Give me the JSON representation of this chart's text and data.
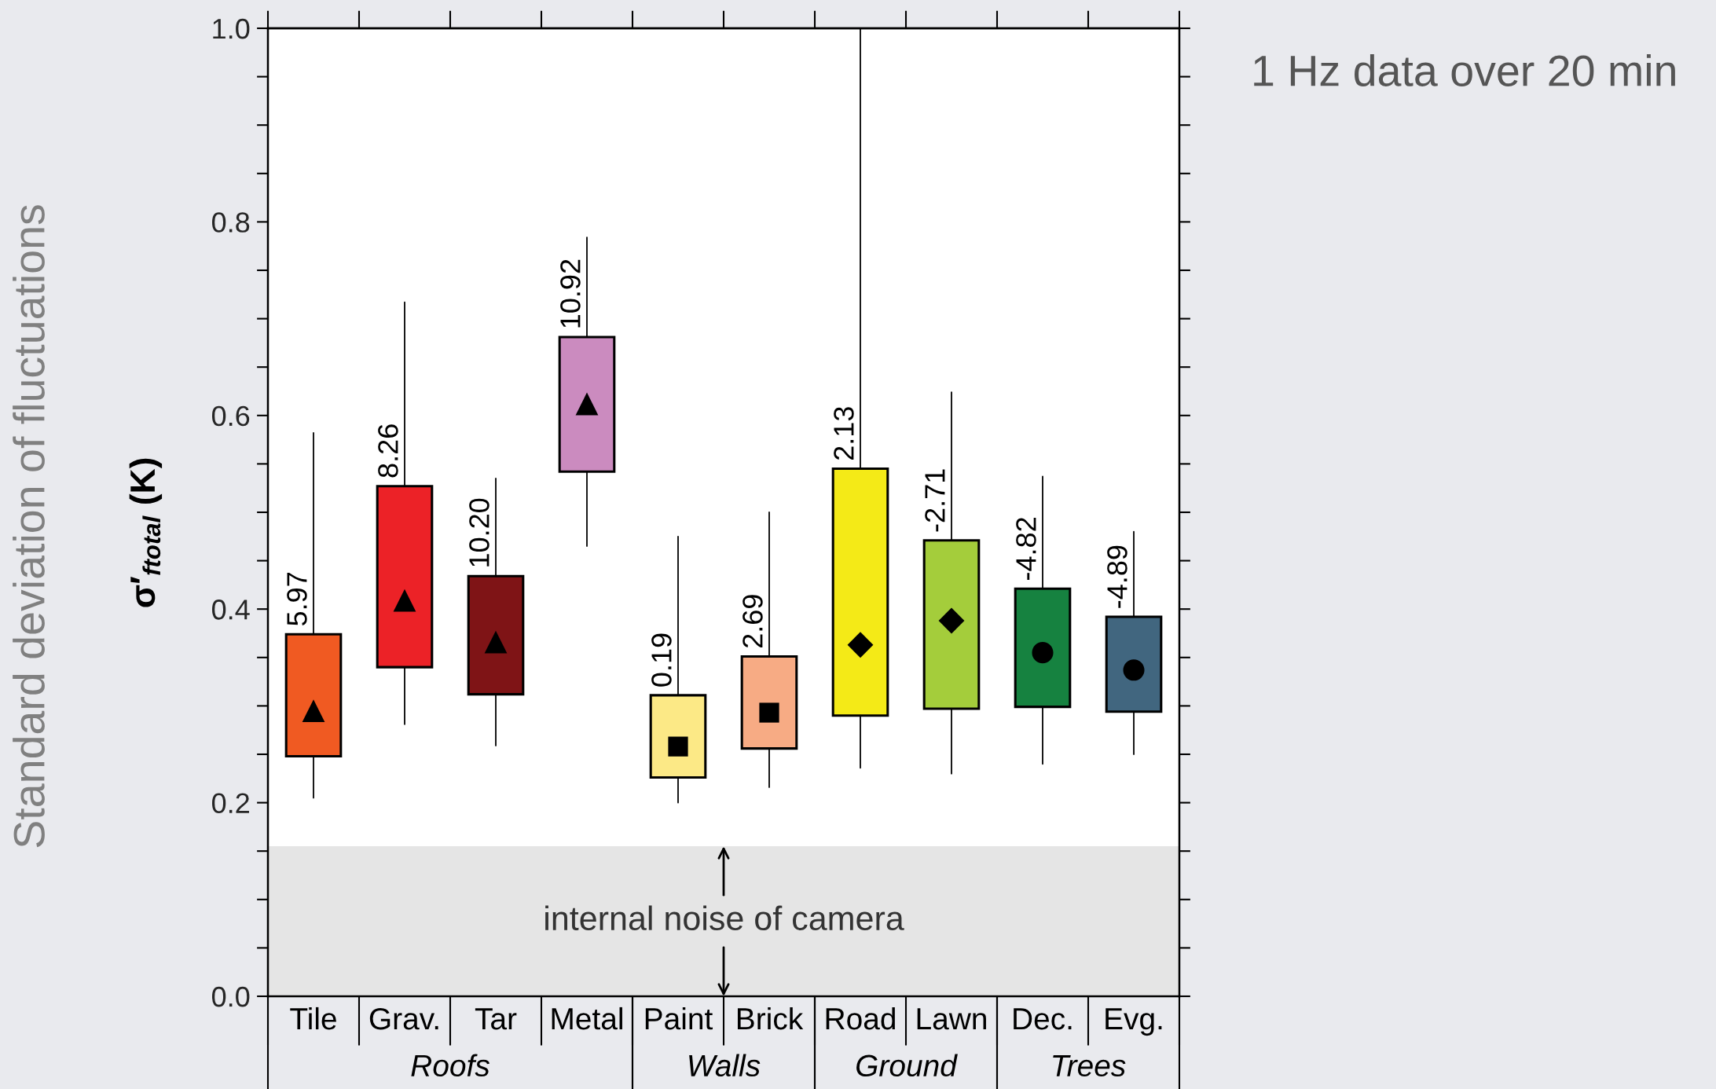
{
  "chart_data": {
    "type": "box",
    "title": "Standard deviation of fluctuations",
    "subtitle": "1 Hz data over 20 min",
    "ylabel": "σ′$_{ftotal}$ (K)",
    "categories": [
      "Tile",
      "Grav.",
      "Tar",
      "Metal",
      "Paint",
      "Brick",
      "Road",
      "Lawn",
      "Dec.",
      "Evg."
    ],
    "series": [
      {
        "name": "Roofs",
        "marker": "triangle",
        "colors": [
          "#f05a22",
          "#ec2227",
          "#7f1416",
          "#cb8bbf",
          null,
          null,
          null,
          null,
          null,
          null
        ],
        "boxes": [
          {
            "low": 0.205,
            "q1": 0.248,
            "median": 0.295,
            "q3": 0.374,
            "high": 0.582
          },
          {
            "low": 0.281,
            "q1": 0.34,
            "median": 0.409,
            "q3": 0.527,
            "high": 0.717
          },
          {
            "low": 0.259,
            "q1": 0.312,
            "median": 0.366,
            "q3": 0.434,
            "high": 0.535
          },
          {
            "low": 0.465,
            "q1": 0.542,
            "median": 0.612,
            "q3": 0.681,
            "high": 0.784
          },
          null,
          null,
          null,
          null,
          null,
          null
        ]
      },
      {
        "name": "Walls",
        "marker": "square",
        "colors": [
          null,
          null,
          null,
          null,
          "#fce986",
          "#f7ab84",
          null,
          null,
          null,
          null
        ],
        "boxes": [
          null,
          null,
          null,
          null,
          {
            "low": 0.2,
            "q1": 0.226,
            "median": 0.258,
            "q3": 0.311,
            "high": 0.475
          },
          {
            "low": 0.216,
            "q1": 0.256,
            "median": 0.293,
            "q3": 0.351,
            "high": 0.5
          },
          null,
          null,
          null,
          null
        ]
      },
      {
        "name": "Ground",
        "marker": "diamond",
        "colors": [
          null,
          null,
          null,
          null,
          null,
          null,
          "#f4ea17",
          "#a4cd3b",
          null,
          null
        ],
        "boxes": [
          null,
          null,
          null,
          null,
          null,
          null,
          {
            "low": 0.236,
            "q1": 0.29,
            "median": 0.363,
            "q3": 0.545,
            "high": 1.0
          },
          {
            "low": 0.23,
            "q1": 0.297,
            "median": 0.388,
            "q3": 0.471,
            "high": 0.624
          },
          null,
          null
        ]
      },
      {
        "name": "Trees",
        "marker": "circle",
        "colors": [
          null,
          null,
          null,
          null,
          null,
          null,
          null,
          null,
          "#168240",
          "#41667f"
        ],
        "boxes": [
          null,
          null,
          null,
          null,
          null,
          null,
          null,
          null,
          {
            "low": 0.24,
            "q1": 0.299,
            "median": 0.355,
            "q3": 0.421,
            "high": 0.537
          },
          {
            "low": 0.25,
            "q1": 0.294,
            "median": 0.337,
            "q3": 0.392,
            "high": 0.48
          }
        ]
      }
    ],
    "legend": "bottom",
    "ylim": [
      0,
      1.0
    ],
    "yticks": [
      {
        "value": 0,
        "label": "0.0"
      },
      {
        "value": 0.05,
        "label": null
      },
      {
        "value": 0.1,
        "label": null
      },
      {
        "value": 0.15,
        "label": null
      },
      {
        "value": 0.2,
        "label": "0.2"
      },
      {
        "value": 0.25,
        "label": null
      },
      {
        "value": 0.3,
        "label": null
      },
      {
        "value": 0.35,
        "label": null
      },
      {
        "value": 0.4,
        "label": "0.4"
      },
      {
        "value": 0.45,
        "label": null
      },
      {
        "value": 0.5,
        "label": null
      },
      {
        "value": 0.55,
        "label": null
      },
      {
        "value": 0.6,
        "label": "0.6"
      },
      {
        "value": 0.65,
        "label": null
      },
      {
        "value": 0.7,
        "label": null
      },
      {
        "value": 0.75,
        "label": null
      },
      {
        "value": 0.8,
        "label": "0.8"
      },
      {
        "value": 0.85,
        "label": null
      },
      {
        "value": 0.9,
        "label": null
      },
      {
        "value": 0.95,
        "label": null
      },
      {
        "value": 1.0,
        "label": "1.0"
      }
    ],
    "bands": [
      {
        "axis": "y",
        "from": 0,
        "to": 0.155,
        "label": "internal noise of camera",
        "color": "#e5e5e5"
      }
    ],
    "annotations": [
      {
        "text": "5.97",
        "x": "Tile",
        "y": 0.374
      },
      {
        "text": "8.26",
        "x": "Grav.",
        "y": 0.527
      },
      {
        "text": "10.20",
        "x": "Tar",
        "y": 0.434
      },
      {
        "text": "10.92",
        "x": "Metal",
        "y": 0.681
      },
      {
        "text": "0.19",
        "x": "Paint",
        "y": 0.311
      },
      {
        "text": "2.69",
        "x": "Brick",
        "y": 0.351
      },
      {
        "text": "2.13",
        "x": "Road",
        "y": 0.545
      },
      {
        "text": "-2.71",
        "x": "Lawn",
        "y": 0.471
      },
      {
        "text": "-4.82",
        "x": "Dec.",
        "y": 0.421
      },
      {
        "text": "-4.89",
        "x": "Evg.",
        "y": 0.392
      }
    ]
  }
}
